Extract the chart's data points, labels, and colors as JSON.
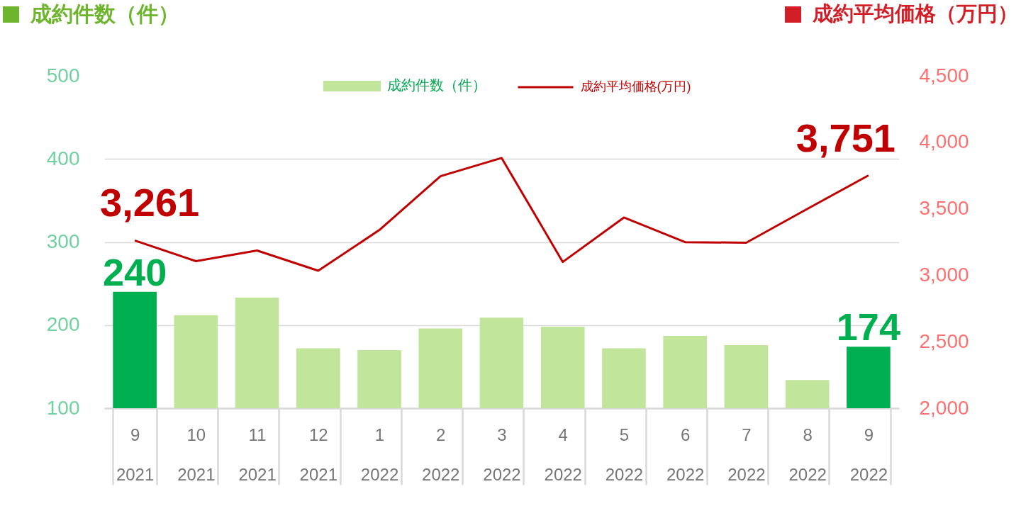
{
  "chart_data": {
    "type": "bar",
    "ylabel": "成約件数（件）",
    "y2label": "成約平均価格（万円）",
    "categories": [
      "9\n2021",
      "10\n2021",
      "11\n2021",
      "12\n2021",
      "1\n2022",
      "2\n2022",
      "3\n2022",
      "4\n2022",
      "5\n2022",
      "6\n2022",
      "7\n2022",
      "8\n2022",
      "9\n2022"
    ],
    "series": [
      {
        "name": "成約件数（件）",
        "color": "#c2e59c",
        "colors": [
          "#00b050",
          "#c2e59c",
          "#c2e59c",
          "#c2e59c",
          "#c2e59c",
          "#c2e59c",
          "#c2e59c",
          "#c2e59c",
          "#c2e59c",
          "#c2e59c",
          "#c2e59c",
          "#c2e59c",
          "#00b050"
        ],
        "values": [
          240,
          212,
          233,
          172,
          170,
          196,
          209,
          198,
          172,
          187,
          176,
          134,
          174
        ],
        "value_labels": [
          "240",
          null,
          null,
          null,
          null,
          null,
          null,
          null,
          null,
          null,
          null,
          null,
          "174"
        ]
      },
      {
        "name": "成約平均価格(万円)",
        "type": "line",
        "axis": "y2",
        "color": "#c00000",
        "values": [
          3261,
          3106,
          3186,
          3034,
          3340,
          3745,
          3882,
          3100,
          3434,
          3249,
          3245,
          3499,
          3751
        ],
        "value_labels": [
          "3,261",
          null,
          null,
          null,
          null,
          null,
          null,
          null,
          null,
          null,
          null,
          null,
          "3,751"
        ]
      }
    ],
    "ylim": [
      100,
      500
    ],
    "yticks": [
      100,
      200,
      300,
      400,
      500
    ],
    "y2lim": [
      2000,
      4500
    ],
    "y2ticks": [
      {
        "value": 2000,
        "label": "2,000"
      },
      {
        "value": 2500,
        "label": "2,500"
      },
      {
        "value": 3000,
        "label": "3,000"
      },
      {
        "value": 3500,
        "label": "3,500"
      },
      {
        "value": 4000,
        "label": "4,000"
      },
      {
        "value": 4500,
        "label": "4,500"
      }
    ],
    "grid": "y",
    "legend": "top"
  }
}
